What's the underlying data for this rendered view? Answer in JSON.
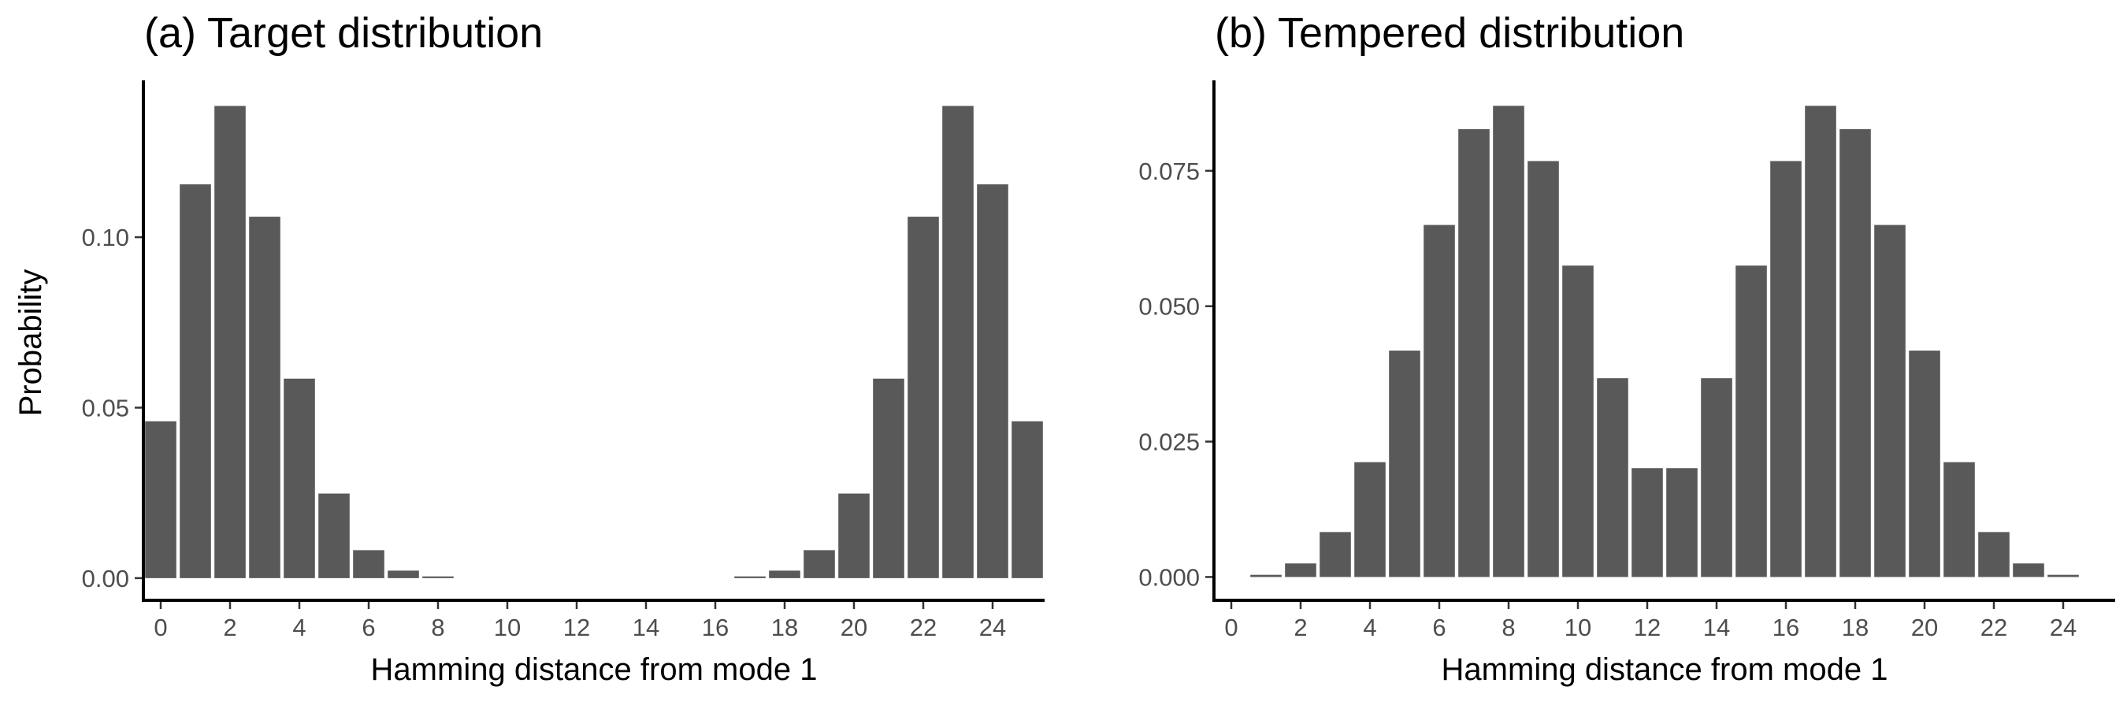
{
  "figure": {
    "ylabel": "Probability"
  },
  "chart_data": [
    {
      "type": "bar",
      "title": "(a) Target distribution",
      "xlabel": "Hamming distance from mode 1",
      "ylabel": "Probability",
      "x": [
        0,
        1,
        2,
        3,
        4,
        5,
        6,
        7,
        8,
        9,
        10,
        11,
        12,
        13,
        14,
        15,
        16,
        17,
        18,
        19,
        20,
        21,
        22,
        23,
        24,
        25
      ],
      "values": [
        0.046,
        0.1155,
        0.1385,
        0.106,
        0.0585,
        0.0248,
        0.0082,
        0.0022,
        0.0005,
        0,
        0,
        0,
        0,
        0,
        0,
        0,
        0,
        0.0005,
        0.0022,
        0.0082,
        0.0248,
        0.0585,
        0.106,
        0.1385,
        0.1155,
        0.046
      ],
      "xlim": [
        -0.5,
        25.5
      ],
      "ylim": [
        -0.0065,
        0.146
      ],
      "xticks": [
        0,
        2,
        4,
        6,
        8,
        10,
        12,
        14,
        16,
        18,
        20,
        22,
        24
      ],
      "xtick_labels": [
        "0",
        "2",
        "4",
        "6",
        "8",
        "10",
        "12",
        "14",
        "16",
        "18",
        "20",
        "22",
        "24"
      ],
      "yticks": [
        0.0,
        0.05,
        0.1
      ],
      "ytick_labels": [
        "0.00",
        "0.05",
        "0.10"
      ],
      "bar_color": "#595959"
    },
    {
      "type": "bar",
      "title": "(b) Tempered distribution",
      "xlabel": "Hamming distance from mode 1",
      "ylabel": "",
      "x": [
        0,
        1,
        2,
        3,
        4,
        5,
        6,
        7,
        8,
        9,
        10,
        11,
        12,
        13,
        14,
        15,
        16,
        17,
        18,
        19,
        20,
        21,
        22,
        23,
        24,
        25
      ],
      "values": [
        0,
        0.0004,
        0.0025,
        0.0083,
        0.0212,
        0.0418,
        0.065,
        0.0827,
        0.087,
        0.0768,
        0.0575,
        0.0367,
        0.0201,
        0.0201,
        0.0367,
        0.0575,
        0.0768,
        0.087,
        0.0827,
        0.065,
        0.0418,
        0.0212,
        0.0083,
        0.0025,
        0.0004,
        0
      ],
      "xlim": [
        -0.5,
        25.5
      ],
      "ylim": [
        -0.0043,
        0.0917
      ],
      "xticks": [
        0,
        2,
        4,
        6,
        8,
        10,
        12,
        14,
        16,
        18,
        20,
        22,
        24
      ],
      "xtick_labels": [
        "0",
        "2",
        "4",
        "6",
        "8",
        "10",
        "12",
        "14",
        "16",
        "18",
        "20",
        "22",
        "24"
      ],
      "yticks": [
        0.0,
        0.025,
        0.05,
        0.075
      ],
      "ytick_labels": [
        "0.000",
        "0.025",
        "0.050",
        "0.075"
      ],
      "bar_color": "#595959"
    }
  ]
}
